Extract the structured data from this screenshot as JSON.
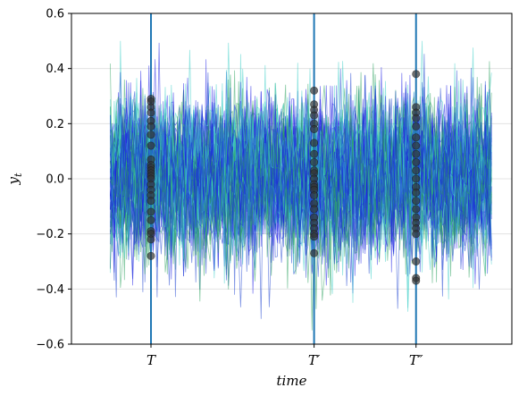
{
  "chart_data": {
    "type": "line",
    "title": "",
    "xlabel": "time",
    "ylabel": "y_t",
    "ylim": [
      -0.6,
      0.6
    ],
    "yticks": [
      -0.6,
      -0.4,
      -0.2,
      0.0,
      0.2,
      0.4,
      0.6
    ],
    "ytick_labels": [
      "−0.6",
      "−0.4",
      "−0.2",
      "0.0",
      "0.2",
      "0.4",
      "0.6"
    ],
    "xlim": [
      -19,
      197
    ],
    "grid": "horizontal",
    "n_time_steps": 188,
    "n_paths": 60,
    "path_amplitude": 0.13,
    "series_colors": [
      "#1f1fe6",
      "#2ca25f",
      "#40d0c8",
      "#1a3fd0"
    ],
    "vertical_markers": [
      {
        "label": "T",
        "x": 20,
        "color": "#1f77b4"
      },
      {
        "label": "T′",
        "x": 100,
        "color": "#1f77b4"
      },
      {
        "label": "T″",
        "x": 150,
        "color": "#1f77b4"
      }
    ],
    "cross_sections": [
      {
        "x": 20,
        "values": [
          0.29,
          0.28,
          0.26,
          0.24,
          0.21,
          0.19,
          0.16,
          0.12,
          0.07,
          0.05,
          0.04,
          0.03,
          0.02,
          0.01,
          0.0,
          -0.02,
          -0.04,
          -0.06,
          -0.08,
          -0.12,
          -0.15,
          -0.19,
          -0.2,
          -0.22,
          -0.28
        ]
      },
      {
        "x": 100,
        "values": [
          0.32,
          0.27,
          0.25,
          0.23,
          0.2,
          0.18,
          0.13,
          0.09,
          0.06,
          0.03,
          0.02,
          0.0,
          -0.02,
          -0.03,
          -0.04,
          -0.06,
          -0.09,
          -0.11,
          -0.14,
          -0.16,
          -0.18,
          -0.2,
          -0.21,
          -0.27
        ]
      },
      {
        "x": 150,
        "values": [
          0.38,
          0.26,
          0.24,
          0.22,
          0.19,
          0.15,
          0.12,
          0.09,
          0.06,
          0.03,
          0.0,
          -0.03,
          -0.05,
          -0.08,
          -0.11,
          -0.14,
          -0.16,
          -0.18,
          -0.2,
          -0.3,
          -0.36,
          -0.37
        ]
      }
    ],
    "marker_color": "#333333"
  }
}
